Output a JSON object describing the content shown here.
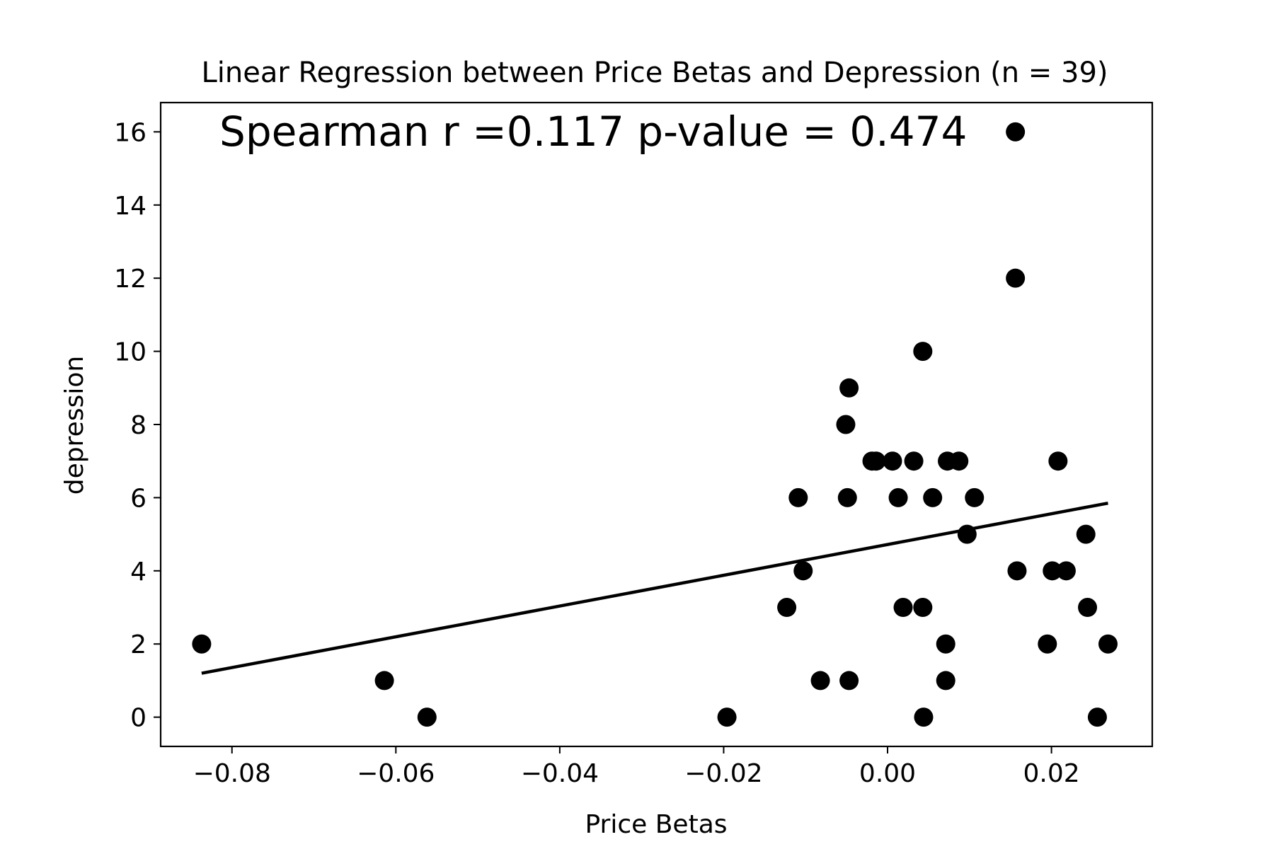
{
  "chart_data": {
    "type": "scatter",
    "title": "Linear Regression between Price Betas and Depression (n = 39)",
    "annotation": "Spearman r =0.117  p-value = 0.474",
    "xlabel": "Price Betas",
    "ylabel": "depression",
    "xlim": [
      -0.0887,
      0.0323
    ],
    "ylim": [
      -0.8,
      16.8
    ],
    "xticks": [
      -0.08,
      -0.06,
      -0.04,
      -0.02,
      0.0,
      0.02
    ],
    "xtick_labels": [
      "−0.08",
      "−0.06",
      "−0.04",
      "−0.02",
      "0.00",
      "0.02"
    ],
    "yticks": [
      0,
      2,
      4,
      6,
      8,
      10,
      12,
      14,
      16
    ],
    "ytick_labels": [
      "0",
      "2",
      "4",
      "6",
      "8",
      "10",
      "12",
      "14",
      "16"
    ],
    "grid": false,
    "marker_color": "#000000",
    "line_color": "#000000",
    "points": [
      {
        "x": -0.0837,
        "y": 2
      },
      {
        "x": -0.0614,
        "y": 1
      },
      {
        "x": -0.0562,
        "y": 0
      },
      {
        "x": -0.0196,
        "y": 0
      },
      {
        "x": -0.0123,
        "y": 3
      },
      {
        "x": -0.0109,
        "y": 6
      },
      {
        "x": -0.0103,
        "y": 4
      },
      {
        "x": -0.0082,
        "y": 1
      },
      {
        "x": -0.0051,
        "y": 8
      },
      {
        "x": -0.0049,
        "y": 6
      },
      {
        "x": -0.0047,
        "y": 9
      },
      {
        "x": -0.0047,
        "y": 1
      },
      {
        "x": -0.0019,
        "y": 7
      },
      {
        "x": -0.0014,
        "y": 7
      },
      {
        "x": 0.0006,
        "y": 7
      },
      {
        "x": 0.0013,
        "y": 6
      },
      {
        "x": 0.0019,
        "y": 3
      },
      {
        "x": 0.0032,
        "y": 7
      },
      {
        "x": 0.0043,
        "y": 10
      },
      {
        "x": 0.0043,
        "y": 3
      },
      {
        "x": 0.0044,
        "y": 0
      },
      {
        "x": 0.0055,
        "y": 6
      },
      {
        "x": 0.0071,
        "y": 2
      },
      {
        "x": 0.0071,
        "y": 1
      },
      {
        "x": 0.0073,
        "y": 7
      },
      {
        "x": 0.0087,
        "y": 7
      },
      {
        "x": 0.0097,
        "y": 5
      },
      {
        "x": 0.0106,
        "y": 6
      },
      {
        "x": 0.0156,
        "y": 16
      },
      {
        "x": 0.0156,
        "y": 12
      },
      {
        "x": 0.0158,
        "y": 4
      },
      {
        "x": 0.0195,
        "y": 2
      },
      {
        "x": 0.0201,
        "y": 4
      },
      {
        "x": 0.0208,
        "y": 7
      },
      {
        "x": 0.0218,
        "y": 4
      },
      {
        "x": 0.0242,
        "y": 5
      },
      {
        "x": 0.0244,
        "y": 3
      },
      {
        "x": 0.0256,
        "y": 0
      },
      {
        "x": 0.0269,
        "y": 2
      }
    ],
    "regression_line": {
      "x": [
        -0.0837,
        0.0269
      ],
      "y": [
        1.2,
        5.85
      ]
    }
  }
}
